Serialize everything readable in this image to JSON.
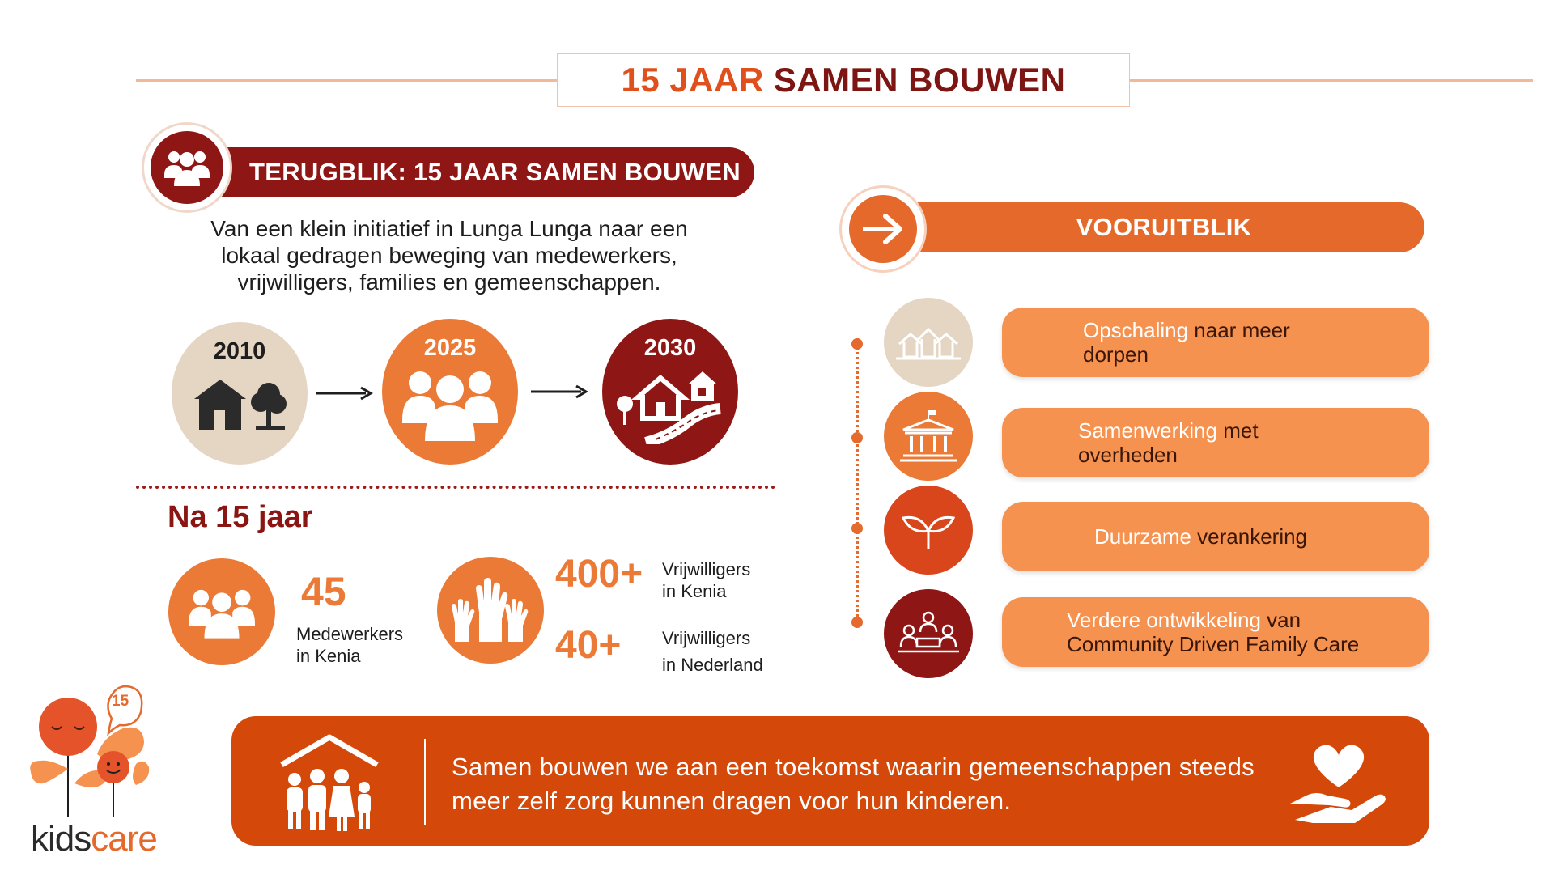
{
  "title": {
    "part1": "15 JAAR",
    "part2": "SAMEN BOUWEN"
  },
  "retrospective": {
    "banner": "TERUGBLIK: 15 JAAR SAMEN BOUWEN",
    "intro_lines": [
      "Van een klein initiatief in Lunga Lunga naar een",
      "lokaal gedragen beweging van medewerkers,",
      "vrijwilligers, families en gemeenschappen."
    ],
    "timeline": [
      {
        "year": "2010",
        "icon": "house-tree-icon"
      },
      {
        "year": "2025",
        "icon": "people-group-icon"
      },
      {
        "year": "2030",
        "icon": "village-road-icon"
      }
    ]
  },
  "after": {
    "heading": "Na 15 jaar",
    "staff": {
      "number": "45",
      "line1": "Medewerkers",
      "line2": "in Kenia"
    },
    "vol_kenya": {
      "number": "400+",
      "line1": "Vrijwilligers",
      "line2": "in Kenia"
    },
    "vol_nl": {
      "number": "40+",
      "line1": "Vrijwilligers",
      "line2": "in Nederland"
    }
  },
  "outlook": {
    "banner": "VOORUITBLIK",
    "items": [
      {
        "highlight": "Opschaling",
        "rest": " naar meer",
        "line2": "dorpen",
        "icon": "villages-icon"
      },
      {
        "highlight": "Samenwerking",
        "rest": " met",
        "line2": "overheden",
        "icon": "government-building-icon"
      },
      {
        "highlight": "Duurzame",
        "rest": " verankering",
        "line2": "",
        "icon": "sprout-icon"
      },
      {
        "highlight": "Verdere ontwikkeling",
        "rest": " van",
        "line2": "Community Driven Family Care",
        "icon": "community-meeting-icon"
      }
    ]
  },
  "footer": {
    "line1": "Samen bouwen we aan een toekomst waarin gemeenschappen steeds",
    "line2": "meer zelf zorg kunnen dragen voor hun kinderen."
  },
  "logo": {
    "part1": "kids",
    "part2": "care",
    "badge": "15"
  },
  "colors": {
    "dark_red": "#7d1512",
    "orange": "#ea7a35",
    "burnt": "#d4490a",
    "light_orange": "#f6924f",
    "beige": "#e5d5c3"
  }
}
